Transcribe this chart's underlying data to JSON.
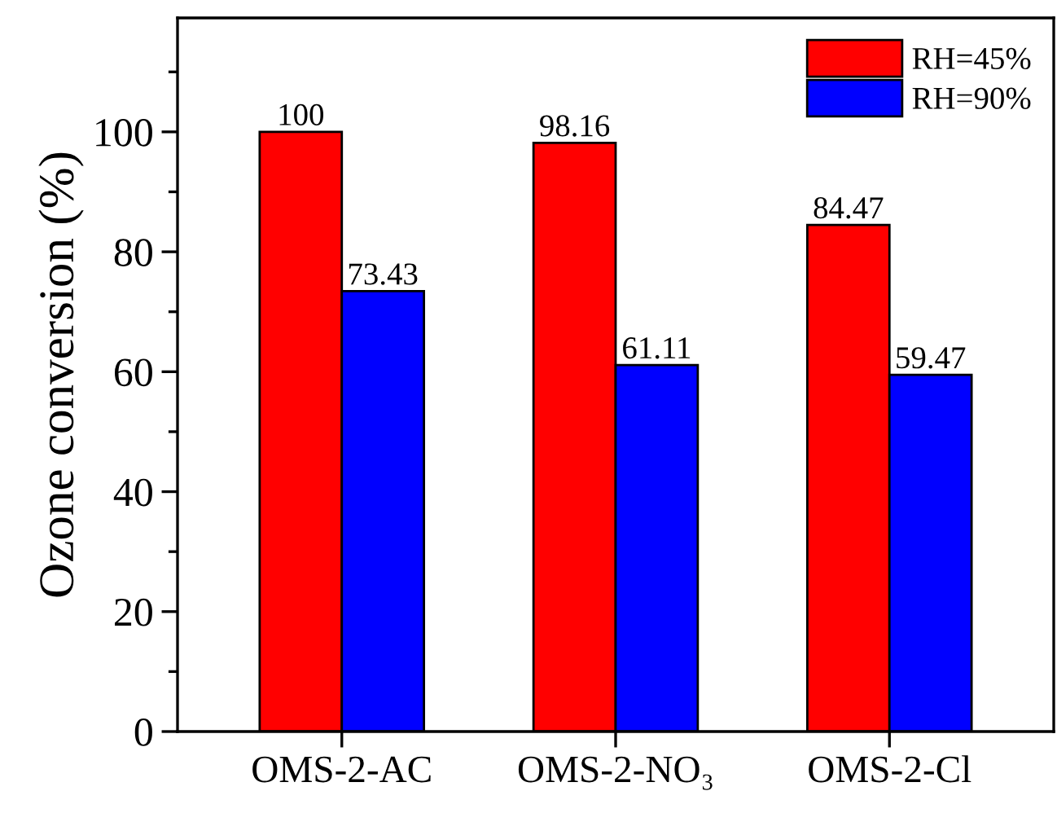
{
  "chart_data": {
    "type": "bar",
    "ylabel": "Ozone conversion (%)",
    "categories": [
      "OMS-2-AC",
      "OMS-2-NO₃",
      "OMS-2-Cl"
    ],
    "series": [
      {
        "name": "RH=45%",
        "color": "#ff0000",
        "values": [
          100,
          98.16,
          84.47
        ]
      },
      {
        "name": "RH=90%",
        "color": "#0000ff",
        "values": [
          73.43,
          61.11,
          59.47
        ]
      }
    ],
    "data_labels": true,
    "ylim": [
      0,
      119
    ],
    "yticks": [
      0,
      {
        "value": 10,
        "label": null
      },
      20,
      {
        "value": 30,
        "label": null
      },
      40,
      {
        "value": 50,
        "label": null
      },
      60,
      {
        "value": 70,
        "label": null
      },
      80,
      {
        "value": 90,
        "label": null
      },
      100,
      {
        "value": 110,
        "label": null
      }
    ],
    "grid": false,
    "legend": "top right"
  }
}
